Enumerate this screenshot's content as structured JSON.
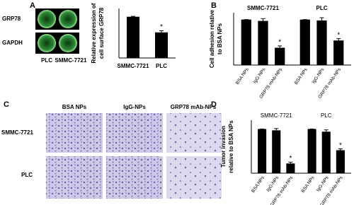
{
  "panel_labels": [
    "A",
    "B",
    "C",
    "D"
  ],
  "blot": {
    "rows": [
      "GRP78",
      "GAPDH"
    ],
    "lanes": [
      "PLC",
      "SMMC-7721"
    ]
  },
  "micrograph": {
    "columns": [
      "BSA NPs",
      "IgG-NPs",
      "GRP78 mAb-NPs"
    ],
    "rows": [
      "SMMC-7721",
      "PLC"
    ]
  },
  "chart_data": [
    {
      "type": "bar",
      "y_label": [
        "Relative expression of",
        "cell surface GRP78"
      ],
      "categories": [
        "SMMC-7721",
        "PLC"
      ],
      "values": [
        1.0,
        0.62
      ],
      "errors": [
        0.01,
        0.04
      ],
      "markers": [
        null,
        "*"
      ],
      "color": "#000000",
      "ylim": [
        0,
        1.2
      ]
    },
    {
      "type": "grouped_bar",
      "y_label": [
        "Cell adhesion relative",
        "to BSA NPs"
      ],
      "categories": [
        "BSA NPs",
        "IgG-NPs",
        "GRP78 mAb-NPs"
      ],
      "color": "#000000",
      "ylim": [
        0,
        1.15
      ],
      "groups": [
        {
          "name": "SMMC-7721",
          "values": [
            1.0,
            0.97,
            0.38
          ],
          "errors": [
            0.0,
            0.05,
            0.04
          ],
          "markers": [
            null,
            null,
            "*"
          ]
        },
        {
          "name": "PLC",
          "values": [
            1.0,
            0.98,
            0.54
          ],
          "errors": [
            0.0,
            0.06,
            0.04
          ],
          "markers": [
            null,
            null,
            "*"
          ]
        }
      ]
    },
    {
      "type": "grouped_bar",
      "y_label": [
        "Tumor invasion",
        "relative to BSA NPs"
      ],
      "categories": [
        "BSA NPs",
        "IgG-NPs",
        "GRP78 mAb-NPs"
      ],
      "color": "#000000",
      "ylim": [
        0,
        1.2
      ],
      "groups": [
        {
          "name": "SMMC-7721",
          "values": [
            1.0,
            0.97,
            0.22
          ],
          "errors": [
            0.0,
            0.04,
            0.03
          ],
          "markers": [
            null,
            null,
            "*"
          ]
        },
        {
          "name": "PLC",
          "values": [
            1.0,
            0.94,
            0.52
          ],
          "errors": [
            0.0,
            0.04,
            0.03
          ],
          "markers": [
            null,
            null,
            "*"
          ]
        }
      ]
    }
  ]
}
